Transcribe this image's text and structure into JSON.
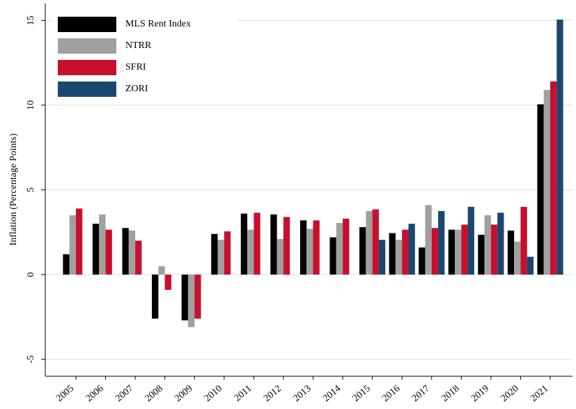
{
  "chart_data": {
    "type": "bar",
    "y_label": "Inflation (Percentage Points)",
    "categories": [
      "2005",
      "2006",
      "2007",
      "2008",
      "2009",
      "2010",
      "2011",
      "2012",
      "2013",
      "2014",
      "2015",
      "2016",
      "2017",
      "2018",
      "2019",
      "2020",
      "2021"
    ],
    "series": [
      {
        "name": "MLS Rent Index",
        "color": "#000000",
        "values": [
          1.2,
          3.0,
          2.75,
          -2.6,
          -2.7,
          2.4,
          3.6,
          3.55,
          3.2,
          2.2,
          2.8,
          2.45,
          1.6,
          2.65,
          2.35,
          2.6,
          10.05
        ]
      },
      {
        "name": "NTRR",
        "color": "#a0a0a0",
        "values": [
          3.5,
          3.55,
          2.6,
          0.5,
          -3.1,
          2.05,
          2.65,
          2.1,
          2.7,
          3.05,
          3.75,
          2.05,
          4.1,
          2.65,
          3.5,
          1.95,
          10.9
        ]
      },
      {
        "name": "SFRI",
        "color": "#c8102e",
        "values": [
          3.9,
          2.65,
          2.0,
          -0.9,
          -2.6,
          2.55,
          3.65,
          3.4,
          3.2,
          3.3,
          3.85,
          2.65,
          2.75,
          2.95,
          2.95,
          4.0,
          11.4
        ]
      },
      {
        "name": "ZORI",
        "color": "#1a476f",
        "values": [
          null,
          null,
          null,
          null,
          null,
          null,
          null,
          null,
          null,
          null,
          2.05,
          3.0,
          3.75,
          4.0,
          3.65,
          1.05,
          15.05
        ]
      }
    ],
    "ylim": [
      -6,
      16
    ],
    "yticks": [
      -5,
      0,
      5,
      10,
      15
    ],
    "grid": true,
    "legend": "top-left"
  }
}
